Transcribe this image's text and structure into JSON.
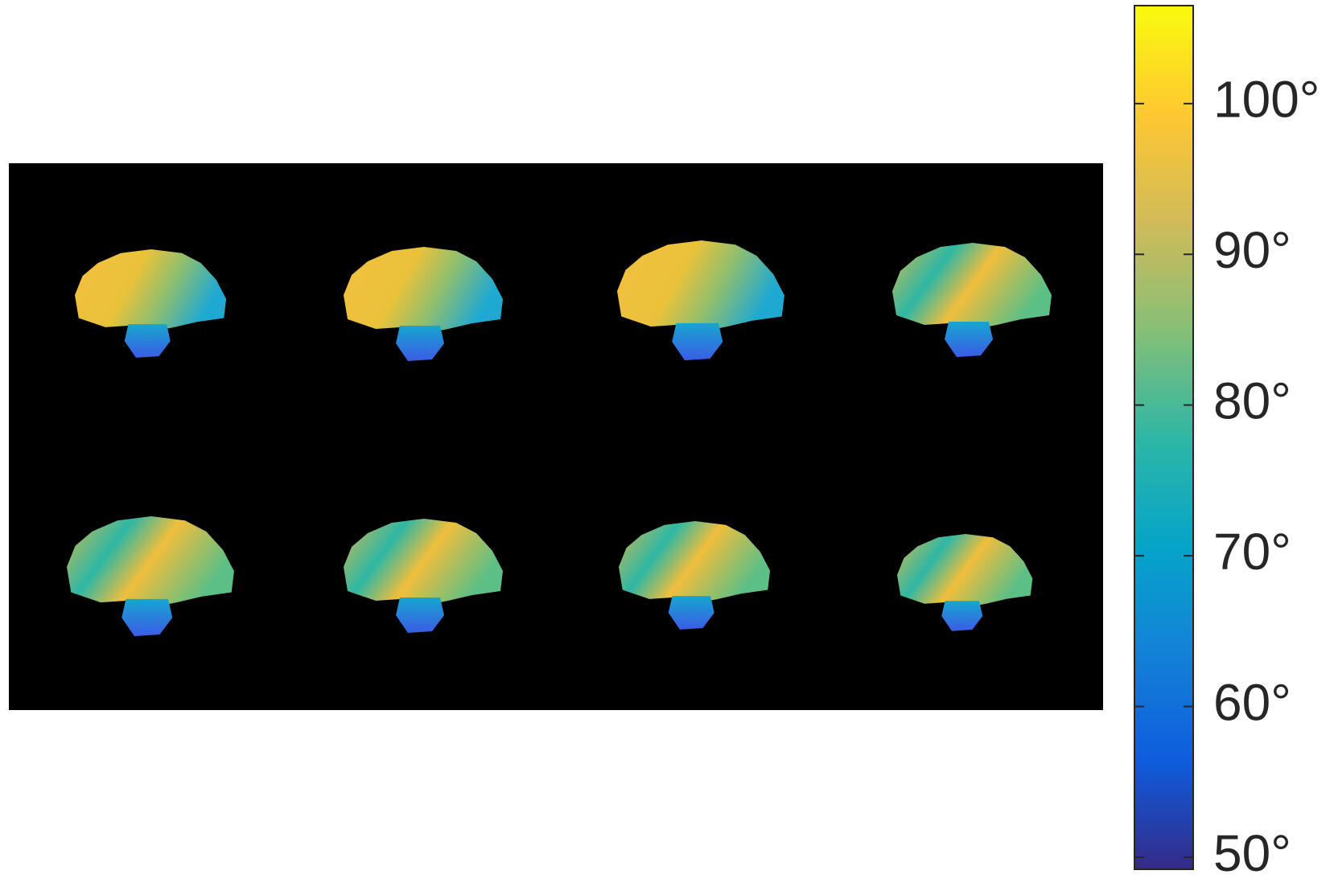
{
  "chart_data": {
    "type": "image-colorbar",
    "colormap": "parula",
    "ylim": [
      49.2,
      106.5
    ],
    "yticks": [
      {
        "value": 50,
        "label": "50°"
      },
      {
        "value": 60,
        "label": "60°"
      },
      {
        "value": 70,
        "label": "70°"
      },
      {
        "value": 80,
        "label": "80°"
      },
      {
        "value": 90,
        "label": "90°"
      },
      {
        "value": 100,
        "label": "100°"
      }
    ]
  }
}
